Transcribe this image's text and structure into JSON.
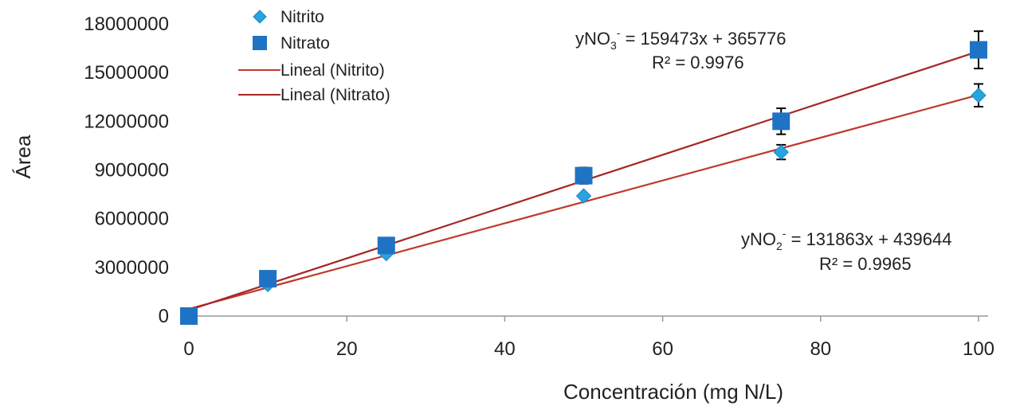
{
  "chart_data": {
    "type": "scatter",
    "title": "",
    "xlabel": "Concentración (mg N/L)",
    "ylabel": "Área",
    "xlim": [
      0,
      100
    ],
    "ylim": [
      0,
      18000000
    ],
    "x_ticks": [
      "0",
      "20",
      "40",
      "60",
      "80",
      "100"
    ],
    "y_ticks": [
      "0",
      "3000000",
      "6000000",
      "9000000",
      "12000000",
      "15000000",
      "18000000"
    ],
    "grid": false,
    "legend_position": "top-left",
    "series": [
      {
        "name": "Nitrito",
        "marker": "diamond",
        "color": "#29A3E0",
        "x": [
          0,
          10,
          25,
          50,
          75,
          100
        ],
        "y": [
          0,
          1950000,
          3850000,
          7400000,
          10100000,
          13600000
        ],
        "error": [
          0,
          0,
          0,
          0,
          450000,
          700000
        ]
      },
      {
        "name": "Nitrato",
        "marker": "square",
        "color": "#1F73C4",
        "x": [
          0,
          10,
          25,
          50,
          75,
          100
        ],
        "y": [
          0,
          2300000,
          4350000,
          8650000,
          12000000,
          16400000
        ],
        "error": [
          0,
          0,
          0,
          500000,
          800000,
          1150000
        ]
      }
    ],
    "trendlines": [
      {
        "name": "Lineal (Nitrito)",
        "slope": 131863,
        "intercept": 439644,
        "color": "#C0392B"
      },
      {
        "name": "Lineal (Nitrato)",
        "slope": 159473,
        "intercept": 365776,
        "color": "#A62626"
      }
    ],
    "annotations": {
      "nitrato_eq": {
        "prefix": "yNO",
        "sub": "3",
        "sup": "-",
        "formula": " = 159473x + 365776",
        "r2": "R² = 0.9976"
      },
      "nitrito_eq": {
        "prefix": "yNO",
        "sub": "2",
        "sup": "-",
        "formula": " = 131863x + 439644",
        "r2": "R² = 0.9965"
      }
    }
  }
}
